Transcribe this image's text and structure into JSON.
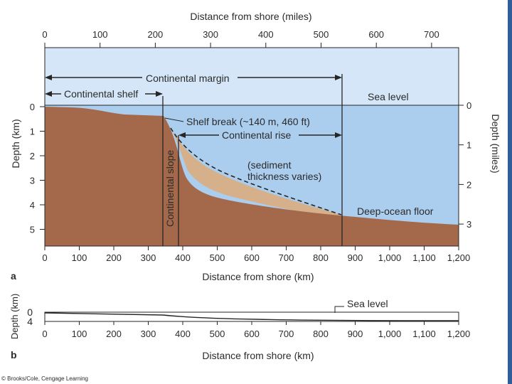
{
  "colors": {
    "sky": "#d4e6f7",
    "ocean": "#abcdee",
    "crust": "#a4684a",
    "sediment": "#d6b08a",
    "line": "#262626",
    "plot_bg": "#ffffff"
  },
  "top_axis": {
    "label": "Distance from shore (miles)",
    "ticks": [
      "0",
      "100",
      "200",
      "300",
      "400",
      "500",
      "600",
      "700"
    ]
  },
  "left_axis": {
    "label": "Depth (km)",
    "ticks": [
      "0",
      "1",
      "2",
      "3",
      "4",
      "5"
    ]
  },
  "right_axis": {
    "label": "Depth (miles)",
    "ticks": [
      "0",
      "1",
      "2",
      "3"
    ]
  },
  "bottom_axis": {
    "label": "Distance from shore (km)",
    "ticks": [
      "0",
      "100",
      "200",
      "300",
      "400",
      "500",
      "600",
      "700",
      "800",
      "900",
      "1,000",
      "1,100",
      "1,200"
    ]
  },
  "annotations": {
    "continental_margin": "Continental margin",
    "continental_shelf": "Continental shelf",
    "sea_level": "Sea level",
    "shelf_break": "Shelf break (~140 m, 460 ft)",
    "continental_rise": "Continental rise",
    "continental_slope": "Continental slope",
    "sediment_line1": "(sediment",
    "sediment_line2": "thickness varies)",
    "deep_ocean_floor": "Deep-ocean floor"
  },
  "panel_a_letter": "a",
  "panel_b": {
    "letter": "b",
    "depth_label": "Depth (km)",
    "depth_ticks": [
      "0",
      "4"
    ],
    "sea_level": "Sea level",
    "x_ticks": [
      "0",
      "100",
      "200",
      "300",
      "400",
      "500",
      "600",
      "700",
      "800",
      "900",
      "1,000",
      "1,100",
      "1,200"
    ],
    "x_label": "Distance from shore (km)"
  },
  "credit": "© Brooks/Cole, Cengage Learning"
}
